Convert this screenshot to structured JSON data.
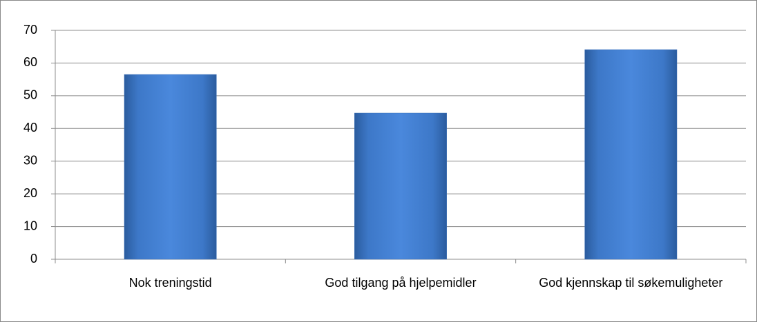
{
  "chart_data": {
    "type": "bar",
    "categories": [
      "Nok treningstid",
      "God tilgang på hjelpemidler",
      "God kjennskap til søkemuligheter"
    ],
    "values": [
      56.5,
      44.7,
      64.1
    ],
    "color": "#4a86d8",
    "ylim": [
      0,
      70
    ],
    "yticks": [
      0,
      10,
      20,
      30,
      40,
      50,
      60,
      70
    ],
    "grid": true
  }
}
